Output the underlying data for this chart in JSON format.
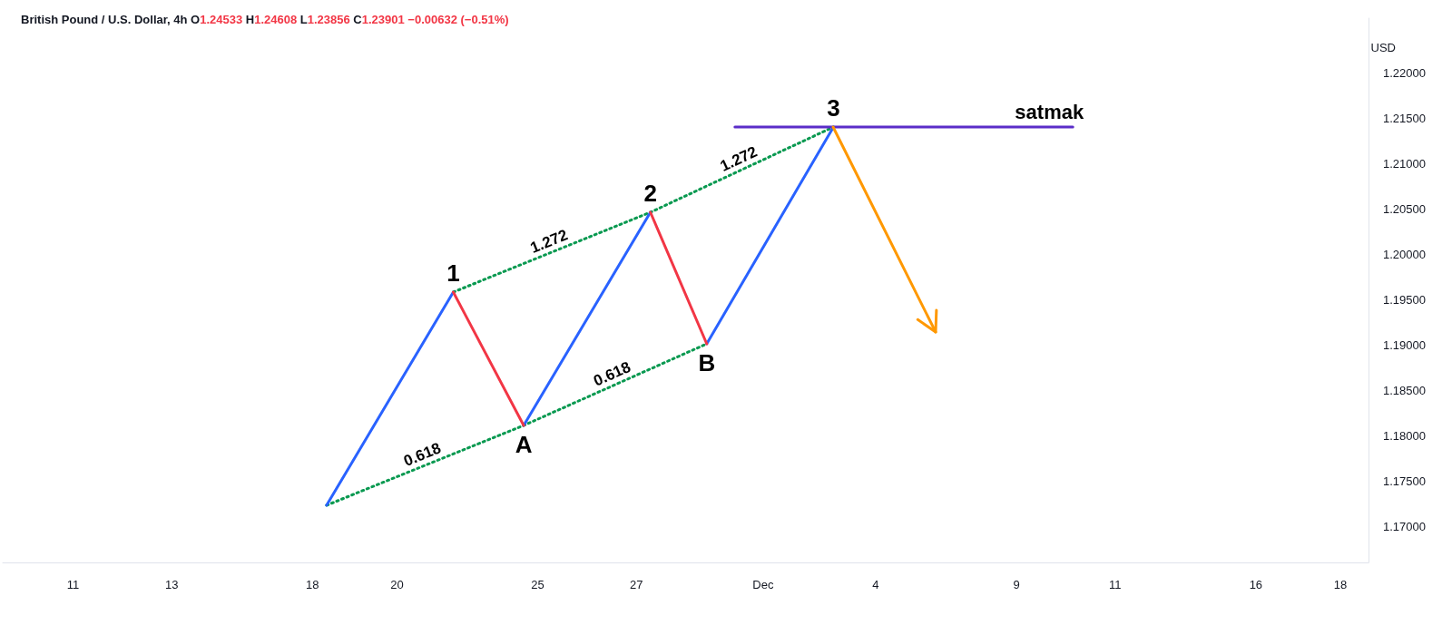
{
  "chart_data": {
    "type": "line",
    "title": "British Pound / U.S. Dollar, 4h O1.24533 H1.24608 L1.23856 C1.23901 −0.00632 (−0.51%)",
    "ylabel": "USD",
    "categories": [
      null,
      null,
      null,
      null,
      null,
      "11",
      null,
      null,
      null,
      null,
      null,
      null,
      "13",
      null,
      null,
      null,
      null,
      null,
      null,
      null,
      null,
      null,
      "18",
      null,
      null,
      null,
      null,
      null,
      "20",
      null,
      null,
      null,
      null,
      null,
      null,
      null,
      null,
      null,
      "25",
      null,
      null,
      null,
      null,
      null,
      null,
      "27",
      null,
      null,
      null,
      null,
      null,
      null,
      null,
      null,
      "Dec",
      null,
      null,
      null,
      null,
      null,
      null,
      null,
      "4",
      null,
      null,
      null,
      null,
      null,
      null,
      null,
      null,
      null,
      "9",
      null,
      null,
      null,
      null,
      null,
      null,
      "11",
      null,
      null,
      null,
      null,
      null,
      null,
      null,
      null,
      null,
      "16",
      null,
      null,
      null,
      null,
      null,
      "18",
      null,
      null
    ],
    "ylim": [
      1.166,
      1.226
    ],
    "yticks": [
      {
        "value": 1.17,
        "label": "1.17000"
      },
      {
        "value": 1.175,
        "label": "1.17500"
      },
      {
        "value": 1.18,
        "label": "1.18000"
      },
      {
        "value": 1.185,
        "label": "1.18500"
      },
      {
        "value": 1.19,
        "label": "1.19000"
      },
      {
        "value": 1.195,
        "label": "1.19500"
      },
      {
        "value": 1.2,
        "label": "1.20000"
      },
      {
        "value": 1.205,
        "label": "1.20500"
      },
      {
        "value": 1.21,
        "label": "1.21000"
      },
      {
        "value": 1.215,
        "label": "1.21500"
      },
      {
        "value": 1.22,
        "label": "1.22000"
      }
    ],
    "grid": false,
    "marker": "none",
    "series": [
      {
        "color": "#089950",
        "line_style": "dotted",
        "values": [
          null,
          null,
          null,
          null,
          null,
          null,
          null,
          null,
          null,
          null,
          null,
          null,
          null,
          null,
          null,
          null,
          null,
          null,
          null,
          null,
          null,
          null,
          null,
          1.1723,
          null,
          null,
          null,
          null,
          null,
          null,
          null,
          null,
          null,
          null,
          null,
          null,
          null,
          1.1811,
          null,
          null,
          null,
          null,
          null,
          null,
          null,
          null,
          null,
          null,
          null,
          null,
          1.1901,
          null,
          null,
          null,
          null,
          null,
          null,
          null,
          null,
          null,
          null,
          null,
          null,
          null,
          null,
          null,
          null,
          null,
          null,
          null,
          null,
          null,
          null,
          null,
          null,
          null,
          null,
          null,
          null,
          null,
          null,
          null,
          null,
          null,
          null,
          null,
          null,
          null,
          null,
          null,
          null,
          null,
          null,
          null,
          null,
          null,
          null,
          null
        ]
      },
      {
        "color": "#089950",
        "line_style": "dotted",
        "values": [
          null,
          null,
          null,
          null,
          null,
          null,
          null,
          null,
          null,
          null,
          null,
          null,
          null,
          null,
          null,
          null,
          null,
          null,
          null,
          null,
          null,
          null,
          null,
          null,
          null,
          null,
          null,
          null,
          null,
          null,
          null,
          null,
          1.1958,
          null,
          null,
          null,
          null,
          null,
          null,
          null,
          null,
          null,
          null,
          null,
          null,
          null,
          1.2046,
          null,
          null,
          null,
          null,
          null,
          null,
          null,
          null,
          null,
          null,
          null,
          null,
          1.214,
          null,
          null,
          null,
          null,
          null,
          null,
          null,
          null,
          null,
          null,
          null,
          null,
          null,
          null,
          null,
          null,
          null,
          null,
          null,
          null,
          null,
          null,
          null,
          null,
          null,
          null,
          null,
          null,
          null,
          null,
          null,
          null,
          null,
          null,
          null,
          null,
          null,
          null
        ]
      },
      {
        "color": "#2962ff",
        "line_style": "solid",
        "values": [
          null,
          null,
          null,
          null,
          null,
          null,
          null,
          null,
          null,
          null,
          null,
          null,
          null,
          null,
          null,
          null,
          null,
          null,
          null,
          null,
          null,
          null,
          null,
          1.1723,
          null,
          null,
          null,
          null,
          null,
          null,
          null,
          null,
          1.1958,
          null,
          null,
          null,
          null,
          null,
          null,
          null,
          null,
          null,
          null,
          null,
          null,
          null,
          null,
          null,
          null,
          null,
          null,
          null,
          null,
          null,
          null,
          null,
          null,
          null,
          null,
          null,
          null,
          null,
          null,
          null,
          null,
          null,
          null,
          null,
          null,
          null,
          null,
          null,
          null,
          null,
          null,
          null,
          null,
          null,
          null,
          null,
          null,
          null,
          null,
          null,
          null,
          null,
          null,
          null,
          null,
          null,
          null,
          null,
          null,
          null,
          null,
          null,
          null,
          null
        ]
      },
      {
        "color": "#2962ff",
        "line_style": "solid",
        "values": [
          null,
          null,
          null,
          null,
          null,
          null,
          null,
          null,
          null,
          null,
          null,
          null,
          null,
          null,
          null,
          null,
          null,
          null,
          null,
          null,
          null,
          null,
          null,
          null,
          null,
          null,
          null,
          null,
          null,
          null,
          null,
          null,
          null,
          null,
          null,
          null,
          null,
          1.1811,
          null,
          null,
          null,
          null,
          null,
          null,
          null,
          null,
          1.2046,
          null,
          null,
          null,
          null,
          null,
          null,
          null,
          null,
          null,
          null,
          null,
          null,
          null,
          null,
          null,
          null,
          null,
          null,
          null,
          null,
          null,
          null,
          null,
          null,
          null,
          null,
          null,
          null,
          null,
          null,
          null,
          null,
          null,
          null,
          null,
          null,
          null,
          null,
          null,
          null,
          null,
          null,
          null,
          null,
          null,
          null,
          null,
          null,
          null,
          null,
          null
        ]
      },
      {
        "color": "#2962ff",
        "line_style": "solid",
        "values": [
          null,
          null,
          null,
          null,
          null,
          null,
          null,
          null,
          null,
          null,
          null,
          null,
          null,
          null,
          null,
          null,
          null,
          null,
          null,
          null,
          null,
          null,
          null,
          null,
          null,
          null,
          null,
          null,
          null,
          null,
          null,
          null,
          null,
          null,
          null,
          null,
          null,
          null,
          null,
          null,
          null,
          null,
          null,
          null,
          null,
          null,
          null,
          null,
          null,
          null,
          1.1901,
          null,
          null,
          null,
          null,
          null,
          null,
          null,
          null,
          1.214,
          null,
          null,
          null,
          null,
          null,
          null,
          null,
          null,
          null,
          null,
          null,
          null,
          null,
          null,
          null,
          null,
          null,
          null,
          null,
          null,
          null,
          null,
          null,
          null,
          null,
          null,
          null,
          null,
          null,
          null,
          null,
          null,
          null,
          null,
          null,
          null,
          null,
          null
        ]
      },
      {
        "color": "#f23645",
        "line_style": "solid",
        "values": [
          null,
          null,
          null,
          null,
          null,
          null,
          null,
          null,
          null,
          null,
          null,
          null,
          null,
          null,
          null,
          null,
          null,
          null,
          null,
          null,
          null,
          null,
          null,
          null,
          null,
          null,
          null,
          null,
          null,
          null,
          null,
          null,
          1.1958,
          null,
          null,
          null,
          null,
          1.1811,
          null,
          null,
          null,
          null,
          null,
          null,
          null,
          null,
          null,
          null,
          null,
          null,
          null,
          null,
          null,
          null,
          null,
          null,
          null,
          null,
          null,
          null,
          null,
          null,
          null,
          null,
          null,
          null,
          null,
          null,
          null,
          null,
          null,
          null,
          null,
          null,
          null,
          null,
          null,
          null,
          null,
          null,
          null,
          null,
          null,
          null,
          null,
          null,
          null,
          null,
          null,
          null,
          null,
          null,
          null,
          null,
          null,
          null,
          null,
          null
        ]
      },
      {
        "color": "#f23645",
        "line_style": "solid",
        "values": [
          null,
          null,
          null,
          null,
          null,
          null,
          null,
          null,
          null,
          null,
          null,
          null,
          null,
          null,
          null,
          null,
          null,
          null,
          null,
          null,
          null,
          null,
          null,
          null,
          null,
          null,
          null,
          null,
          null,
          null,
          null,
          null,
          null,
          null,
          null,
          null,
          null,
          null,
          null,
          null,
          null,
          null,
          null,
          null,
          null,
          null,
          1.2046,
          null,
          null,
          null,
          1.1901,
          null,
          null,
          null,
          null,
          null,
          null,
          null,
          null,
          null,
          null,
          null,
          null,
          null,
          null,
          null,
          null,
          null,
          null,
          null,
          null,
          null,
          null,
          null,
          null,
          null,
          null,
          null,
          null,
          null,
          null,
          null,
          null,
          null,
          null,
          null,
          null,
          null,
          null,
          null,
          null,
          null,
          null,
          null,
          null,
          null,
          null,
          null
        ]
      },
      {
        "name": "satmak",
        "color": "#5b2dc8",
        "line_style": "solid",
        "values": [
          null,
          null,
          null,
          null,
          null,
          null,
          null,
          null,
          null,
          null,
          null,
          null,
          null,
          null,
          null,
          null,
          null,
          null,
          null,
          null,
          null,
          null,
          null,
          null,
          null,
          null,
          null,
          null,
          null,
          null,
          null,
          null,
          null,
          null,
          null,
          null,
          null,
          null,
          null,
          null,
          null,
          null,
          null,
          null,
          null,
          null,
          null,
          null,
          null,
          null,
          null,
          null,
          1.214,
          null,
          null,
          null,
          null,
          null,
          null,
          null,
          null,
          null,
          null,
          null,
          null,
          null,
          null,
          null,
          null,
          null,
          null,
          null,
          null,
          null,
          null,
          null,
          1.214,
          null,
          null,
          null,
          null,
          null,
          null,
          null,
          null,
          null,
          null,
          null,
          null,
          null,
          null,
          null,
          null,
          null,
          null,
          null,
          null,
          null
        ]
      }
    ],
    "annotations": [
      {
        "text": "1",
        "y": 1.1958
      },
      {
        "text": "A",
        "y": 1.1811
      },
      {
        "text": "2",
        "y": 1.2046
      },
      {
        "text": "B",
        "y": 1.1901
      },
      {
        "text": "3",
        "y": 1.214
      },
      "0.618",
      "0.618",
      "1.272",
      "1.272"
    ]
  }
}
